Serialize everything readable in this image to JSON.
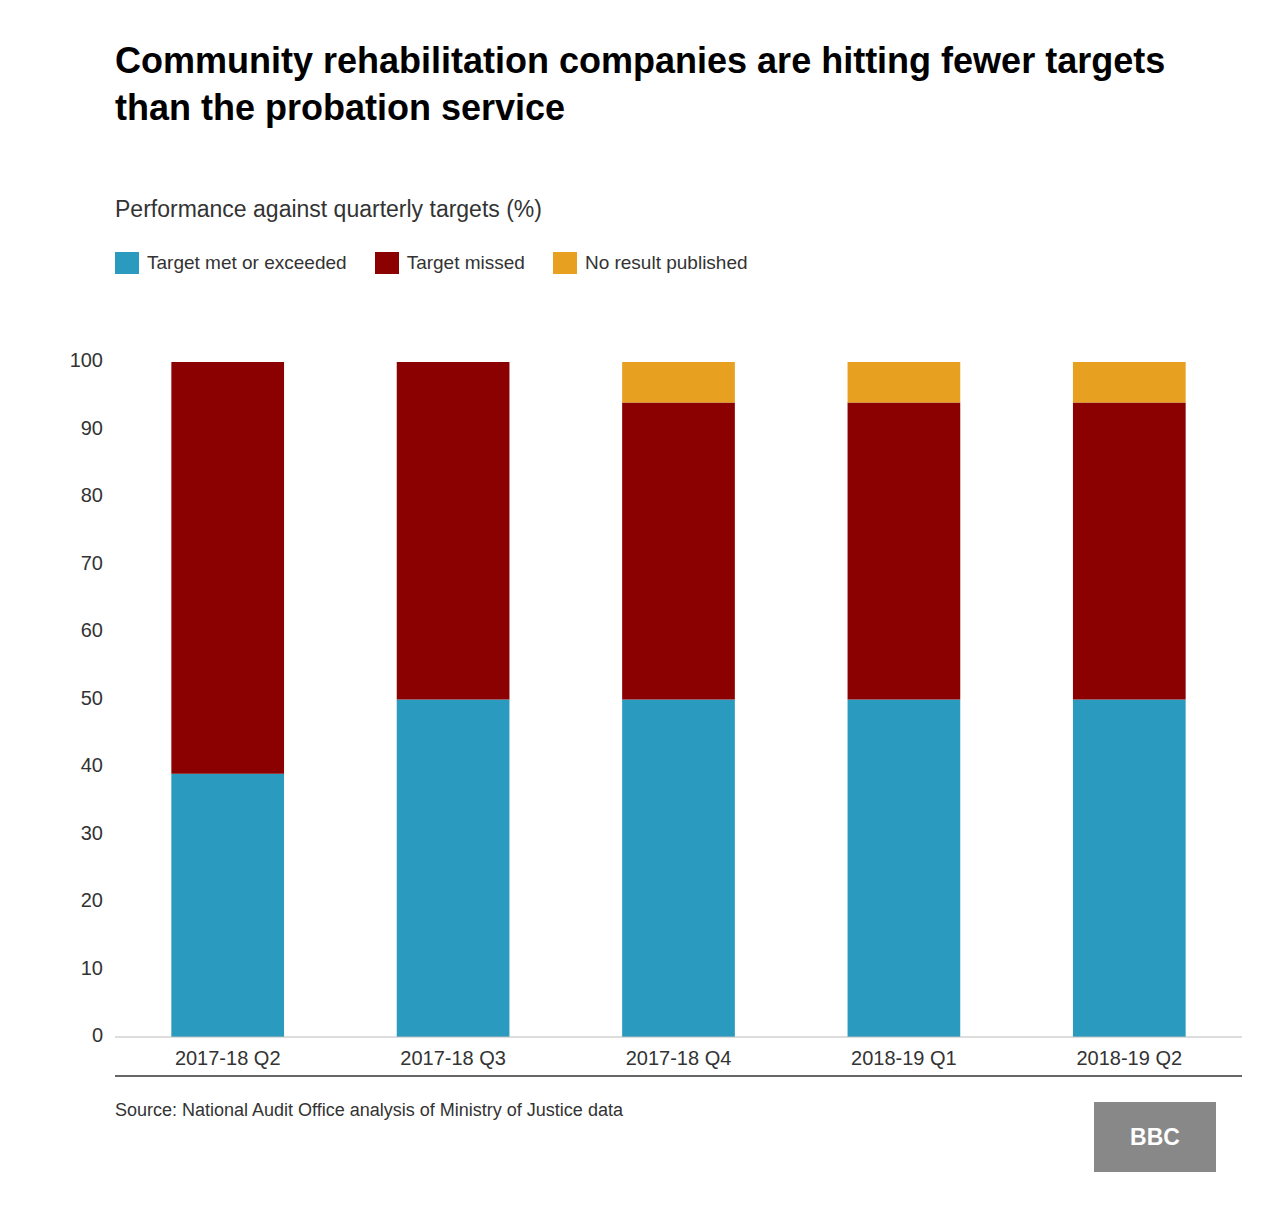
{
  "chart_data": {
    "type": "bar",
    "title": "Community rehabilitation companies are hitting fewer targets than the probation service",
    "subtitle": "Performance against quarterly targets (%)",
    "categories": [
      "2017-18 Q2",
      "2017-18 Q3",
      "2017-18 Q4",
      "2018-19 Q1",
      "2018-19 Q2"
    ],
    "series": [
      {
        "name": "Target met or exceeded",
        "color": "#2A9BBF",
        "values": [
          39,
          50,
          50,
          50,
          50
        ]
      },
      {
        "name": "Target missed",
        "color": "#8B0000",
        "values": [
          61,
          50,
          44,
          44,
          44
        ]
      },
      {
        "name": "No result published",
        "color": "#E8A020",
        "values": [
          0,
          0,
          6,
          6,
          6
        ]
      }
    ],
    "stacked": true,
    "ylim": [
      0,
      100
    ],
    "yticks": [
      0,
      10,
      20,
      30,
      40,
      50,
      60,
      70,
      80,
      90,
      100
    ],
    "grid": false,
    "legend": "top",
    "annotations": [
      "Source: National Audit Office analysis of Ministry of Justice data",
      "BBC"
    ]
  }
}
